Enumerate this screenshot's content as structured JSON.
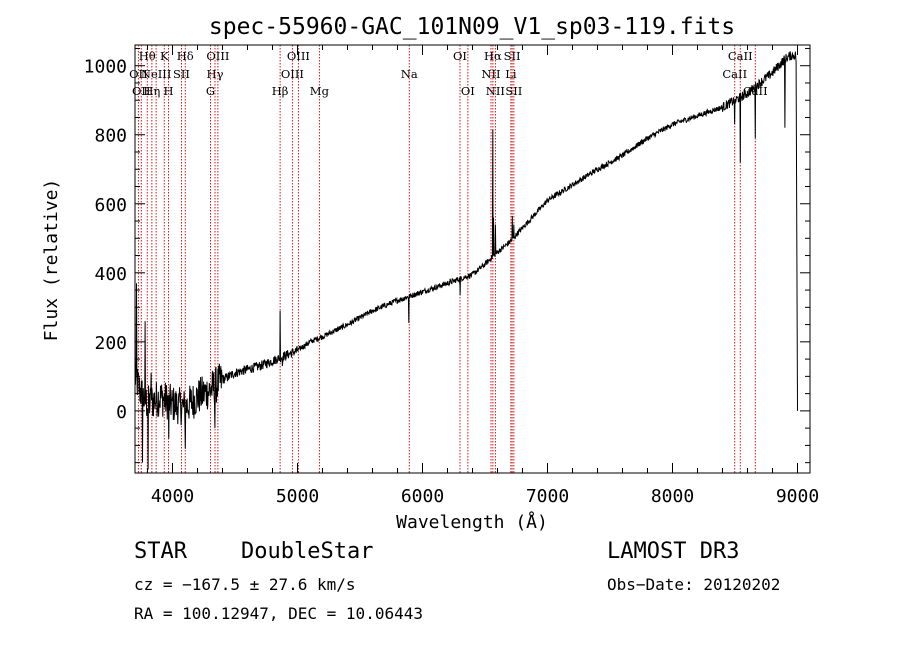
{
  "chart_data": {
    "type": "line",
    "title": "spec-55960-GAC_101N09_V1_sp03-119.fits",
    "xlabel": "Wavelength (Å)",
    "ylabel": "Flux (relative)",
    "xlim": [
      3700,
      9100
    ],
    "ylim": [
      -180,
      1060
    ],
    "x_ticks": [
      4000,
      5000,
      6000,
      7000,
      8000,
      9000
    ],
    "x_tick_labels": [
      "4000",
      "5000",
      "6000",
      "7000",
      "8000",
      "9000"
    ],
    "y_ticks": [
      0,
      200,
      400,
      600,
      800,
      1000
    ],
    "y_tick_labels": [
      "0",
      "200",
      "400",
      "600",
      "800",
      "1000"
    ],
    "series": [
      {
        "name": "flux",
        "color": "#000000",
        "anchors": [
          [
            3700,
            100
          ],
          [
            3750,
            50
          ],
          [
            3800,
            20
          ],
          [
            3900,
            40
          ],
          [
            4000,
            20
          ],
          [
            4100,
            10
          ],
          [
            4200,
            40
          ],
          [
            4300,
            60
          ],
          [
            4400,
            90
          ],
          [
            4500,
            110
          ],
          [
            4600,
            120
          ],
          [
            4700,
            130
          ],
          [
            4800,
            145
          ],
          [
            4900,
            160
          ],
          [
            5000,
            175
          ],
          [
            5100,
            200
          ],
          [
            5200,
            215
          ],
          [
            5400,
            250
          ],
          [
            5600,
            290
          ],
          [
            5800,
            320
          ],
          [
            6000,
            345
          ],
          [
            6200,
            370
          ],
          [
            6400,
            395
          ],
          [
            6500,
            425
          ],
          [
            6600,
            460
          ],
          [
            6700,
            490
          ],
          [
            6800,
            530
          ],
          [
            6900,
            570
          ],
          [
            7000,
            610
          ],
          [
            7200,
            655
          ],
          [
            7400,
            700
          ],
          [
            7600,
            740
          ],
          [
            7800,
            790
          ],
          [
            8000,
            830
          ],
          [
            8200,
            855
          ],
          [
            8400,
            880
          ],
          [
            8600,
            920
          ],
          [
            8700,
            950
          ],
          [
            8800,
            980
          ],
          [
            8900,
            1020
          ],
          [
            8950,
            1030
          ]
        ],
        "features": [
          {
            "x": 3712,
            "y": 370
          },
          {
            "x": 3760,
            "y": -150
          },
          {
            "x": 3780,
            "y": 260
          },
          {
            "x": 3805,
            "y": -170
          },
          {
            "x": 3830,
            "y": 110
          },
          {
            "x": 3970,
            "y": -80
          },
          {
            "x": 4102,
            "y": -110
          },
          {
            "x": 4340,
            "y": -50
          },
          {
            "x": 4861,
            "y": 290
          },
          {
            "x": 4880,
            "y": 130
          },
          {
            "x": 5890,
            "y": 255
          },
          {
            "x": 6300,
            "y": 335
          },
          {
            "x": 6563,
            "y": 815
          },
          {
            "x": 6567,
            "y": 560
          },
          {
            "x": 6583,
            "y": 540
          },
          {
            "x": 6717,
            "y": 565
          },
          {
            "x": 6731,
            "y": 540
          },
          {
            "x": 8498,
            "y": 830
          },
          {
            "x": 8542,
            "y": 720
          },
          {
            "x": 8662,
            "y": 790
          },
          {
            "x": 8900,
            "y": 820
          },
          {
            "x": 8990,
            "y": 1010
          },
          {
            "x": 9000,
            "y": 200
          },
          {
            "x": 9002,
            "y": 0
          }
        ]
      }
    ],
    "line_color": "#000000",
    "marker_color": "#cc0000",
    "lines": [
      {
        "x": 3727,
        "label": "OII",
        "row": 1
      },
      {
        "x": 3750,
        "label": "OII",
        "row": 2
      },
      {
        "x": 3798,
        "label": "Hθ",
        "row": 0
      },
      {
        "x": 3835,
        "label": "Hη",
        "row": 2
      },
      {
        "x": 3869,
        "label": "NeIII",
        "row": 1
      },
      {
        "x": 3934,
        "label": "K",
        "row": 0
      },
      {
        "x": 3968,
        "label": "H",
        "row": 2
      },
      {
        "x": 4072,
        "label": "SII",
        "row": 1
      },
      {
        "x": 4102,
        "label": "Hδ",
        "row": 0
      },
      {
        "x": 4304,
        "label": "G",
        "row": 2
      },
      {
        "x": 4340,
        "label": "Hγ",
        "row": 1
      },
      {
        "x": 4363,
        "label": "OIII",
        "row": 0
      },
      {
        "x": 4861,
        "label": "Hβ",
        "row": 2
      },
      {
        "x": 4959,
        "label": "OIII",
        "row": 1
      },
      {
        "x": 5007,
        "label": "OIII",
        "row": 0
      },
      {
        "x": 5175,
        "label": "Mg",
        "row": 2
      },
      {
        "x": 5894,
        "label": "Na",
        "row": 1
      },
      {
        "x": 6300,
        "label": "OI",
        "row": 0
      },
      {
        "x": 6363,
        "label": "OI",
        "row": 2
      },
      {
        "x": 6548,
        "label": "NII",
        "row": 1
      },
      {
        "x": 6563,
        "label": "Hα",
        "row": 0
      },
      {
        "x": 6583,
        "label": "NII",
        "row": 2
      },
      {
        "x": 6707,
        "label": "Li",
        "row": 1
      },
      {
        "x": 6717,
        "label": "SII",
        "row": 0
      },
      {
        "x": 6731,
        "label": "SII",
        "row": 2
      },
      {
        "x": 8498,
        "label": "CaII",
        "row": 1
      },
      {
        "x": 8542,
        "label": "CaII",
        "row": 0
      },
      {
        "x": 8662,
        "label": "CaII",
        "row": 2
      }
    ]
  },
  "info": {
    "class": "STAR",
    "subclass": "DoubleStar",
    "survey": "LAMOST DR3",
    "cz": "cz = −167.5 ± 27.6 km/s",
    "obs_date": "Obs−Date: 20120202",
    "radec": "RA = 100.12947, DEC =  10.06443"
  }
}
